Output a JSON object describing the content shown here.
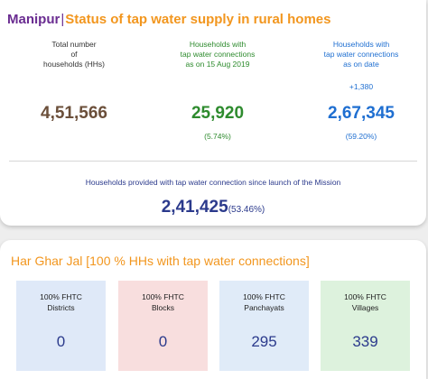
{
  "header": {
    "state": "Manipur",
    "separator": "|",
    "subtitle": "Status of tap water supply in rural homes"
  },
  "stats": {
    "total": {
      "label_lines": [
        "Total number",
        "of",
        "households (HHs)"
      ],
      "value": "4,51,566"
    },
    "as_on_2019": {
      "label_lines": [
        "Households with",
        "tap water connections",
        "as on 15 Aug 2019"
      ],
      "value": "25,920",
      "percent": "(5.74%)"
    },
    "as_on_date": {
      "label_lines": [
        "Households with",
        "tap water connections",
        "as on date"
      ],
      "delta": "+1,380",
      "value": "2,67,345",
      "percent": "(59.20%)"
    }
  },
  "mission": {
    "label": "Households provided with tap water connection since launch of the Mission",
    "value": "2,41,425",
    "percent": "(53.46%)"
  },
  "har_ghar_jal": {
    "title": "Har Ghar Jal [100 % HHs with tap water connections]",
    "tiles": [
      {
        "label_lines": [
          "100% FHTC",
          "Districts"
        ],
        "value": "0"
      },
      {
        "label_lines": [
          "100% FHTC",
          "Blocks"
        ],
        "value": "0"
      },
      {
        "label_lines": [
          "100% FHTC",
          "Panchayats"
        ],
        "value": "295"
      },
      {
        "label_lines": [
          "100% FHTC",
          "Villages"
        ],
        "value": "339"
      }
    ]
  },
  "colors": {
    "purple": "#6a2c91",
    "orange": "#f2961e",
    "brown": "#6b4f3a",
    "green": "#2e8b2e",
    "blue": "#1f6fd1",
    "navy": "#2b3a8c"
  }
}
